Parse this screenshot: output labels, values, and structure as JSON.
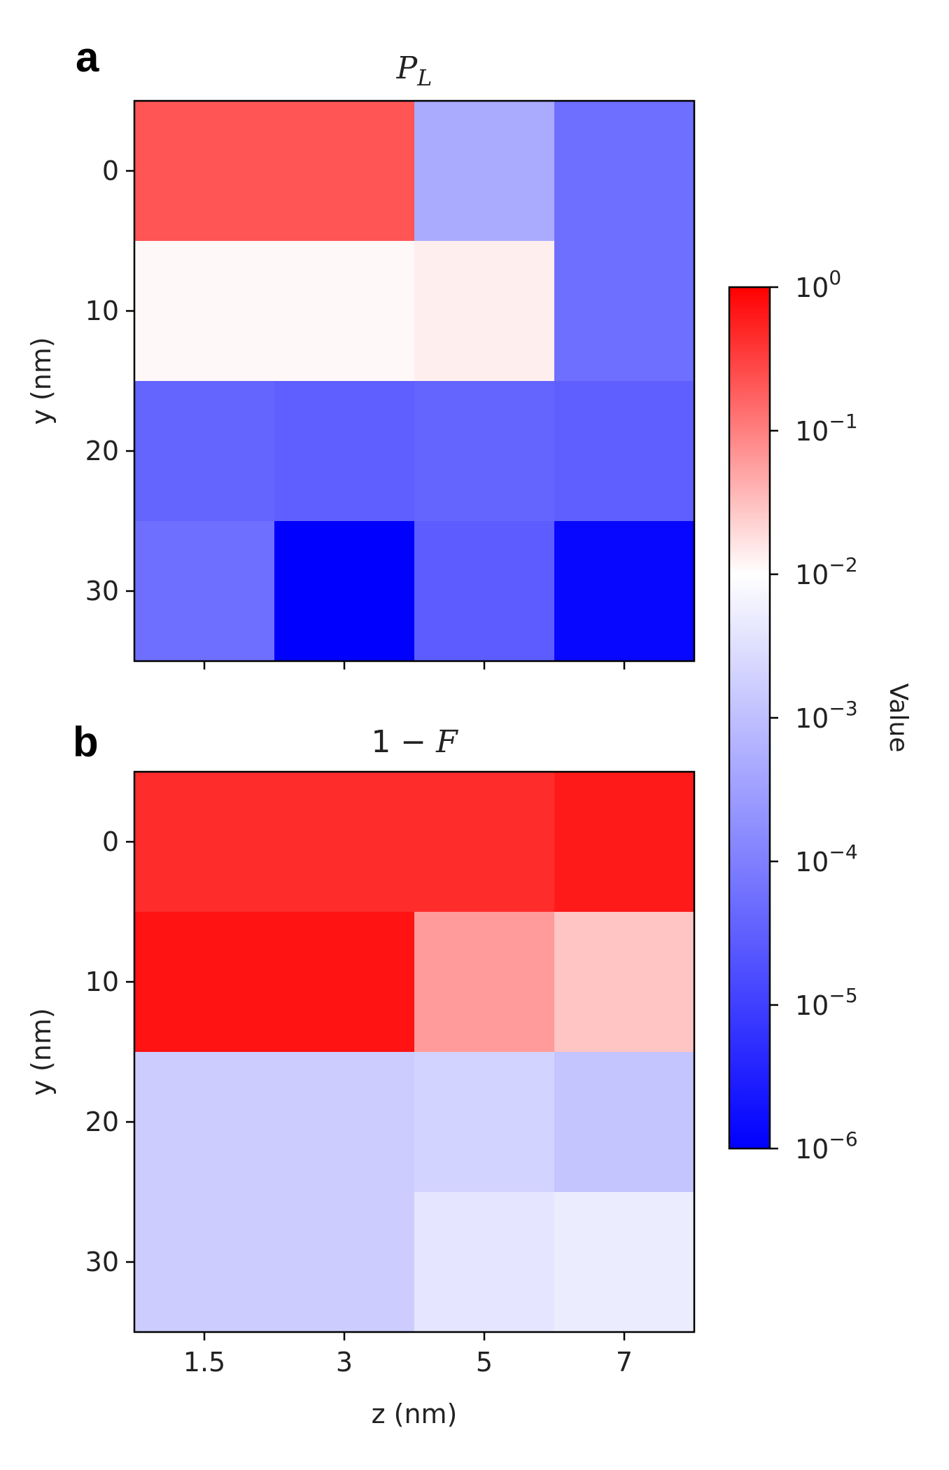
{
  "figure": {
    "panel_a_letter": "a",
    "panel_b_letter": "b"
  },
  "chart_data": [
    {
      "type": "heatmap",
      "panel": "a",
      "title": "P_L",
      "title_main": "P",
      "title_sub": "L",
      "xlabel": "",
      "ylabel": "y (nm)",
      "x": [
        "1.5",
        "3",
        "5",
        "7"
      ],
      "y": [
        "0",
        "10",
        "20",
        "30"
      ],
      "x_tick_labels_visible": false,
      "color_scale": "log",
      "values": [
        [
          0.1,
          0.1,
          0.0001,
          2e-05
        ],
        [
          0.0012,
          0.0012,
          0.0016,
          2e-05
        ],
        [
          1.5e-05,
          1.3e-05,
          1.5e-05,
          1.3e-05
        ],
        [
          2e-05,
          1e-06,
          1.2e-05,
          1.2e-06
        ]
      ]
    },
    {
      "type": "heatmap",
      "panel": "b",
      "title": "1 − F",
      "title_prefix": "1 − ",
      "title_symbol": "F",
      "xlabel": "z (nm)",
      "ylabel": "y (nm)",
      "x": [
        "1.5",
        "3",
        "5",
        "7"
      ],
      "y": [
        "0",
        "10",
        "20",
        "30"
      ],
      "x_tick_labels_visible": true,
      "color_scale": "log",
      "values": [
        [
          0.3,
          0.3,
          0.3,
          0.5
        ],
        [
          0.6,
          0.6,
          0.015,
          0.005
        ],
        [
          0.00025,
          0.00025,
          0.0003,
          0.0002
        ],
        [
          0.00025,
          0.00025,
          0.0005,
          0.0006
        ]
      ]
    }
  ],
  "colorbar": {
    "label": "Value",
    "scale": "log",
    "range": [
      1e-06,
      1
    ],
    "colormap": "bwr",
    "colors": {
      "low": "#0000ff",
      "mid": "#ffffff",
      "high": "#ff0000"
    },
    "ticks": [
      {
        "base": "10",
        "exp": "0"
      },
      {
        "base": "10",
        "exp": "−1"
      },
      {
        "base": "10",
        "exp": "−2"
      },
      {
        "base": "10",
        "exp": "−3"
      },
      {
        "base": "10",
        "exp": "−4"
      },
      {
        "base": "10",
        "exp": "−5"
      },
      {
        "base": "10",
        "exp": "−6"
      }
    ]
  }
}
